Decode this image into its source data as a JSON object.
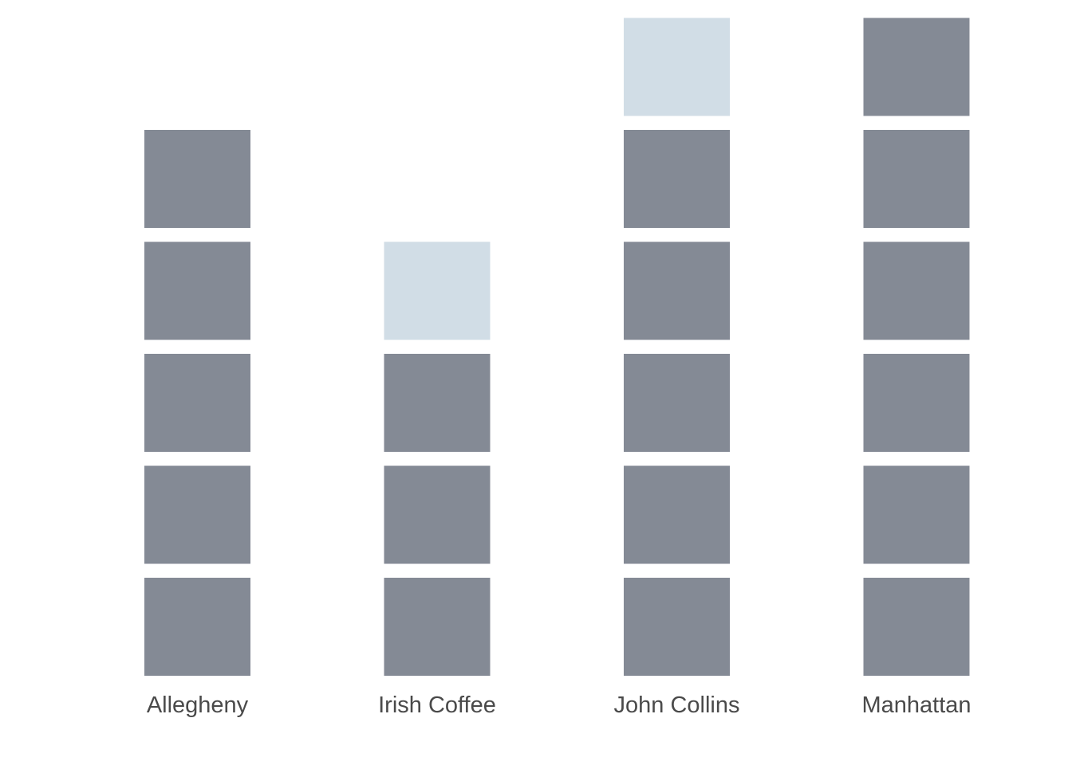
{
  "chart_data": {
    "type": "bar",
    "style": "stacked unit squares",
    "categories": [
      "Allegheny",
      "Irish Coffee",
      "John Collins",
      "Manhattan"
    ],
    "series": [
      {
        "values": [
          5,
          3,
          5,
          6
        ],
        "color": "#848a95"
      },
      {
        "values": [
          0,
          1,
          1,
          0
        ],
        "color": "#d1dde6"
      }
    ],
    "title": "",
    "xlabel": "",
    "ylabel": "",
    "ylim": [
      0,
      6
    ],
    "grid": false,
    "legend": "none"
  }
}
